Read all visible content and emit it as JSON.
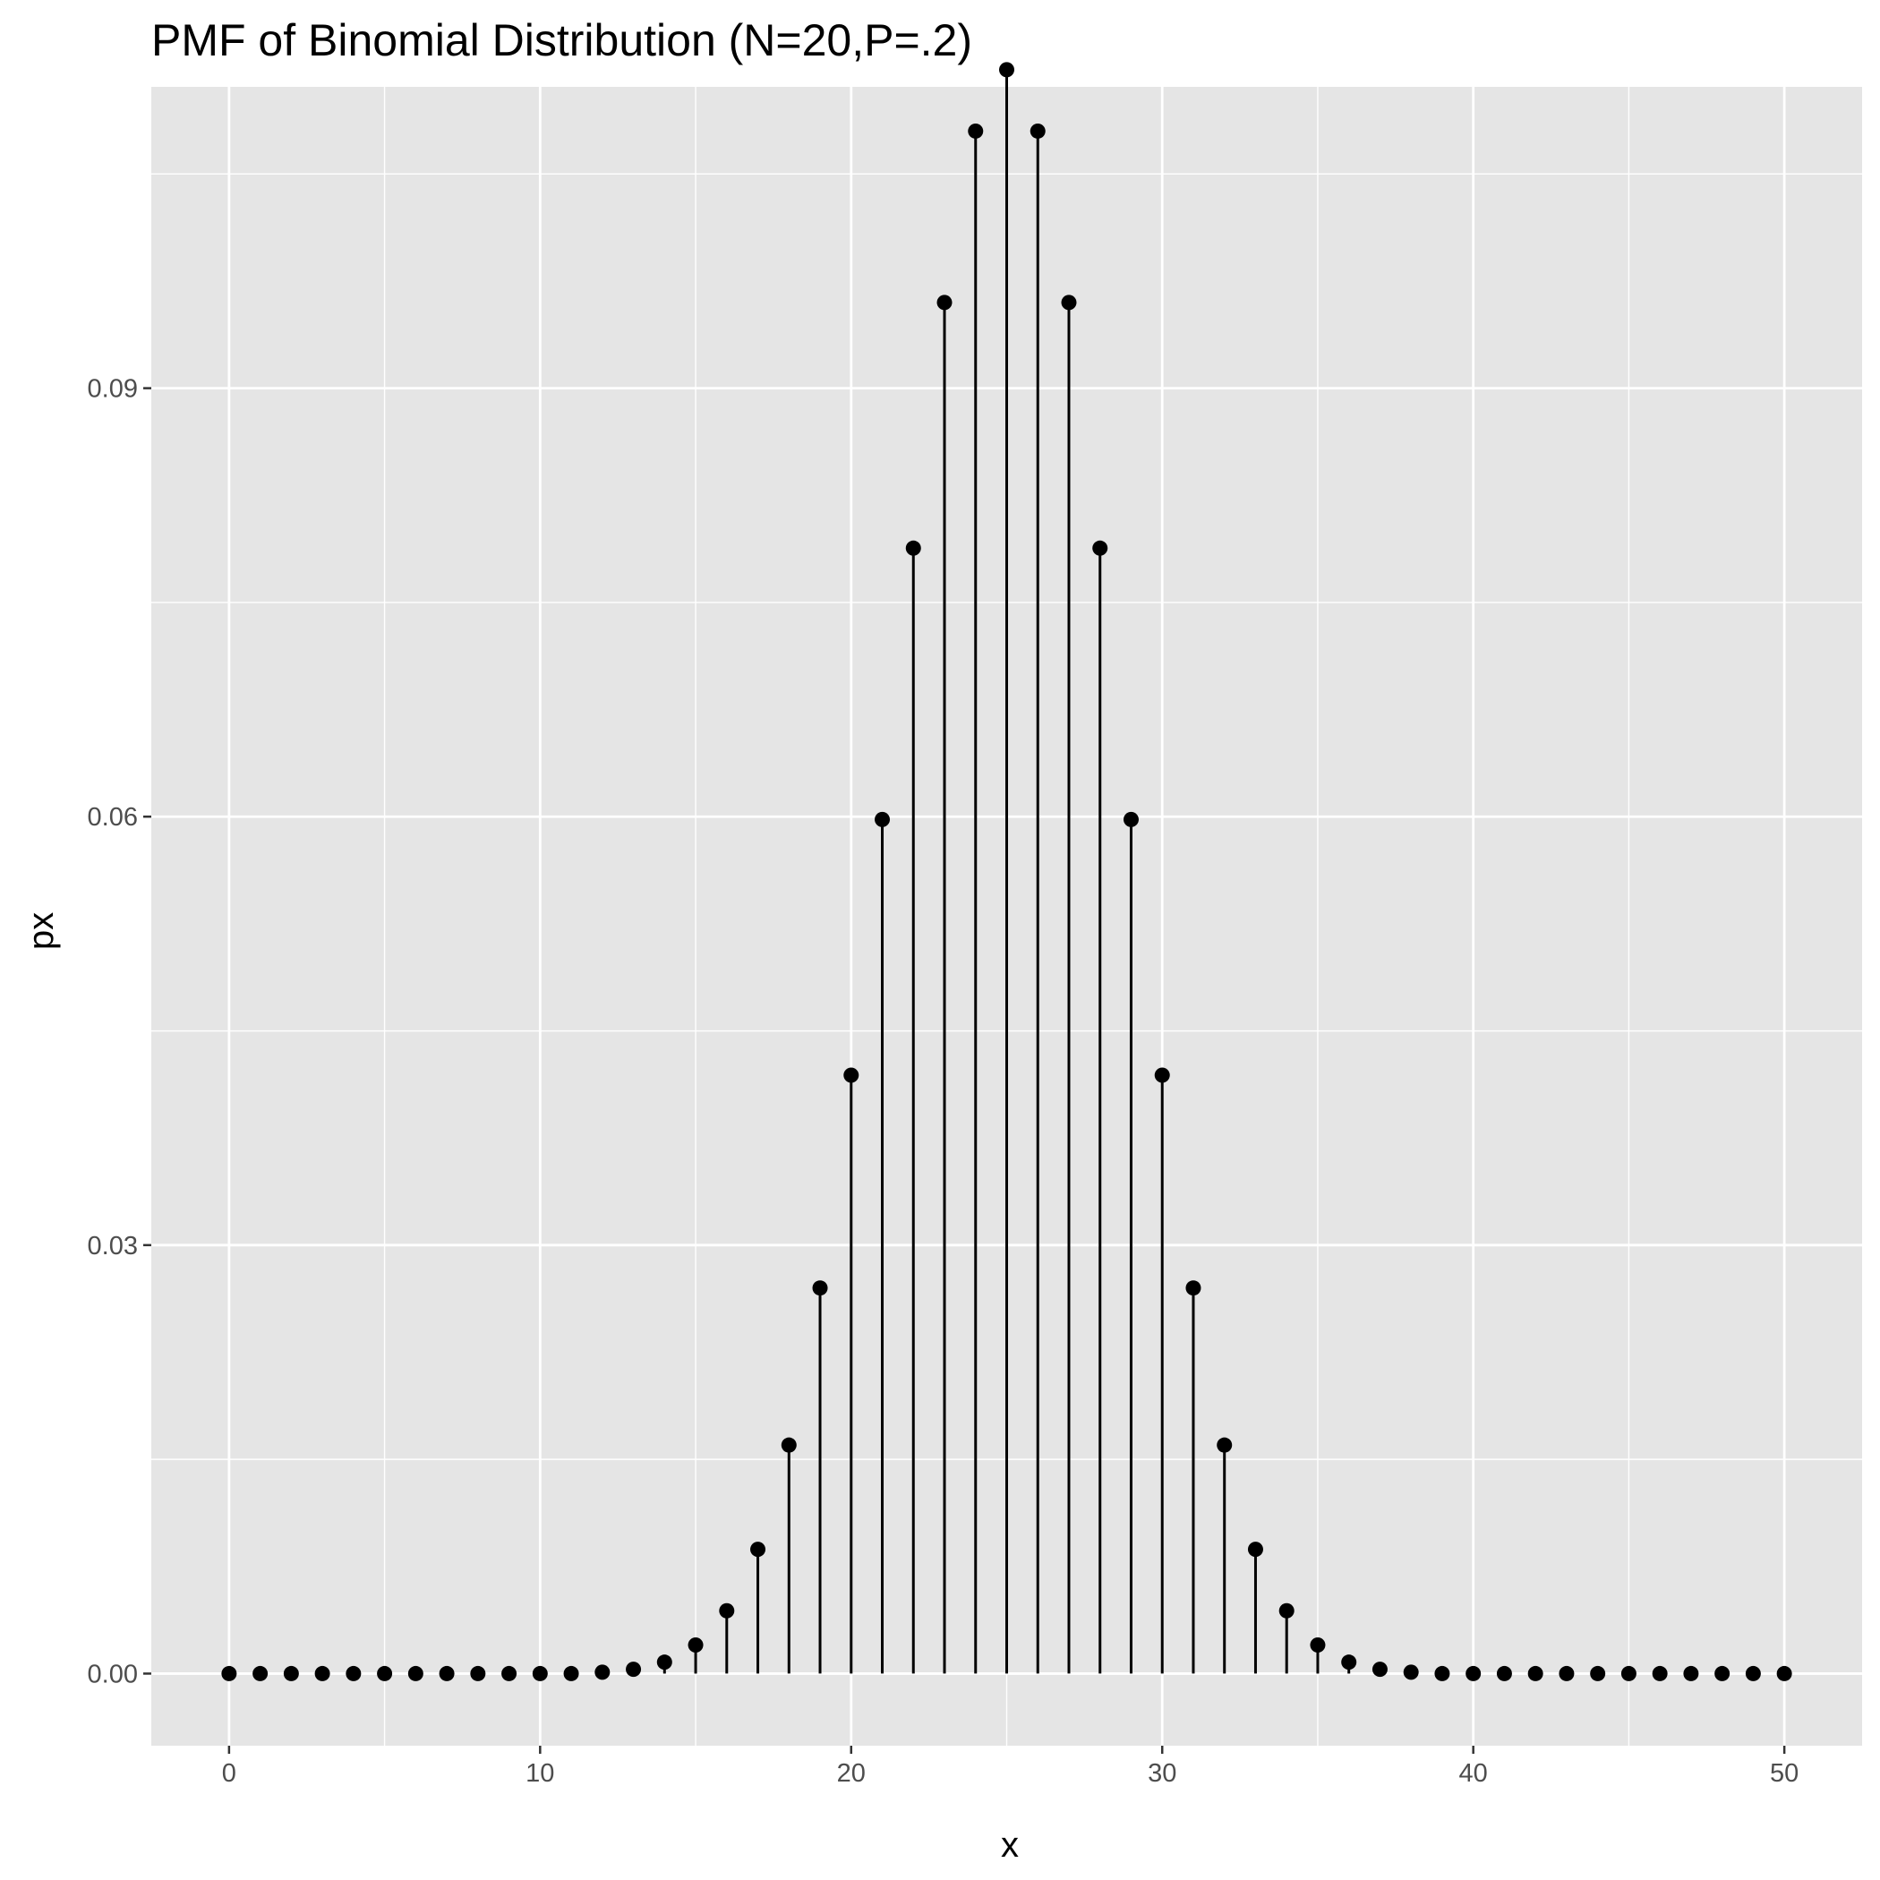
{
  "chart_data": {
    "type": "lollipop",
    "title": "PMF of Binomial Distribution (N=20,P=.2)",
    "xlabel": "x",
    "ylabel": "px",
    "xlim": [
      -2.5,
      52.5
    ],
    "ylim": [
      -0.00505,
      0.1111
    ],
    "x_ticks": [
      0,
      10,
      20,
      30,
      40,
      50
    ],
    "x_tick_labels": [
      "0",
      "10",
      "20",
      "30",
      "40",
      "50"
    ],
    "x_minor_ticks": [
      5,
      15,
      25,
      35,
      45
    ],
    "y_ticks": [
      0,
      0.03,
      0.06,
      0.09
    ],
    "y_tick_labels": [
      "0.00",
      "0.03",
      "0.06",
      "0.09"
    ],
    "y_minor_ticks": [
      0.015,
      0.045,
      0.075,
      0.105
    ],
    "grid": true,
    "colors": {
      "panel": "#e5e5e5",
      "grid": "#ffffff",
      "mark": "#000000",
      "tick_text": "#4d4d4d"
    },
    "x": [
      0,
      1,
      2,
      3,
      4,
      5,
      6,
      7,
      8,
      9,
      10,
      11,
      12,
      13,
      14,
      15,
      16,
      17,
      18,
      19,
      20,
      21,
      22,
      23,
      24,
      25,
      26,
      27,
      28,
      29,
      30,
      31,
      32,
      33,
      34,
      35,
      36,
      37,
      38,
      39,
      40,
      41,
      42,
      43,
      44,
      45,
      46,
      47,
      48,
      49,
      50
    ],
    "values": [
      0,
      0,
      0,
      0,
      0,
      0,
      0,
      0,
      0,
      0,
      0,
      0,
      0.0001,
      0.0003,
      0.0008,
      0.002,
      0.0044,
      0.0087,
      0.016,
      0.027,
      0.0419,
      0.0598,
      0.0788,
      0.096,
      0.108,
      0.1123,
      0.108,
      0.096,
      0.0788,
      0.0598,
      0.0419,
      0.027,
      0.016,
      0.0087,
      0.0044,
      0.002,
      0.0008,
      0.0003,
      0.0001,
      0,
      0,
      0,
      0,
      0,
      0,
      0,
      0,
      0,
      0,
      0,
      0
    ]
  }
}
